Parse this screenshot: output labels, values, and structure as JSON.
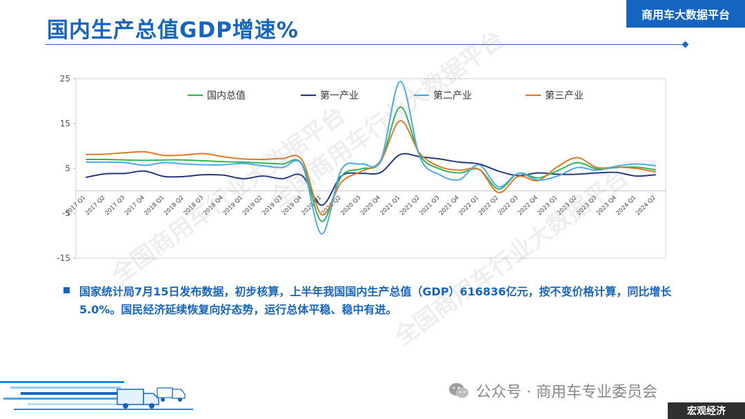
{
  "header": {
    "title": "国内生产总值GDP增速%",
    "brand": "商用车大数据平台"
  },
  "watermarks": [
    "全国商用车行业大数据平台",
    "全国商用车行业大数据平台",
    "全国商用车行业大数据平台"
  ],
  "summary": {
    "text": "国家统计局7月15日发布数据，初步核算，上半年我国国内生产总值（GDP）616836亿元，按不变价格计算，同比增长5.0%。国民经济延续恢复向好态势，运行总体平稳、稳中有进。"
  },
  "footer": {
    "wechat_credit": "公众号 · 商用车专业委员会",
    "tag": "宏观经济"
  },
  "colors": {
    "accent": "#1565c0",
    "series": [
      "#2fb55a",
      "#243a7a",
      "#4aa8ef",
      "#e07a22"
    ]
  },
  "chart_data": {
    "type": "line",
    "title": "",
    "xlabel": "",
    "ylabel": "",
    "ylim": [
      -15,
      25
    ],
    "yticks": [
      -15,
      -5,
      5,
      15,
      25
    ],
    "grid": false,
    "legend_position": "top",
    "smooth": true,
    "categories": [
      "2017 Q1",
      "2017 Q2",
      "2017 Q3",
      "2017 Q4",
      "2018 Q1",
      "2018 Q2",
      "2018 Q3",
      "2018 Q4",
      "2019 Q1",
      "2019 Q2",
      "2019 Q3",
      "2019 Q4",
      "2020 Q1",
      "2020 Q2",
      "2020 Q3",
      "2020 Q4",
      "2021 Q1",
      "2021 Q2",
      "2021 Q3",
      "2021 Q4",
      "2022 Q1",
      "2022 Q2",
      "2022 Q3",
      "2022 Q4",
      "2023 Q1",
      "2023 Q2",
      "2023 Q3",
      "2023 Q4",
      "2024 Q1",
      "2024 Q2"
    ],
    "series": [
      {
        "name": "国内总值",
        "values": [
          7.0,
          7.0,
          6.9,
          6.8,
          6.9,
          6.9,
          6.7,
          6.5,
          6.4,
          6.2,
          6.0,
          6.0,
          -6.8,
          3.2,
          4.9,
          6.5,
          18.7,
          7.9,
          4.9,
          4.0,
          4.8,
          0.4,
          3.9,
          2.9,
          4.5,
          6.3,
          4.9,
          5.2,
          5.3,
          4.7
        ]
      },
      {
        "name": "第一产业",
        "values": [
          3.0,
          3.8,
          3.9,
          4.4,
          3.2,
          3.2,
          3.6,
          3.5,
          2.7,
          3.3,
          2.7,
          3.4,
          -3.2,
          3.3,
          3.9,
          4.1,
          8.1,
          7.6,
          7.1,
          6.4,
          6.0,
          4.4,
          3.4,
          4.0,
          3.7,
          3.7,
          4.0,
          4.1,
          3.3,
          3.6
        ]
      },
      {
        "name": "第二产业",
        "values": [
          6.4,
          6.4,
          6.3,
          5.7,
          6.3,
          6.0,
          5.8,
          5.8,
          6.1,
          5.6,
          5.2,
          5.8,
          -9.6,
          4.7,
          6.0,
          6.8,
          24.4,
          7.5,
          3.6,
          2.5,
          5.8,
          0.9,
          3.9,
          2.4,
          3.3,
          5.2,
          4.6,
          5.5,
          6.0,
          5.6
        ]
      },
      {
        "name": "第三产业",
        "values": [
          8.1,
          8.2,
          8.5,
          8.7,
          7.9,
          8.0,
          8.3,
          7.6,
          7.1,
          7.0,
          7.2,
          6.9,
          -5.3,
          1.9,
          4.3,
          6.7,
          15.6,
          8.3,
          5.4,
          4.6,
          4.8,
          -0.4,
          3.2,
          2.3,
          5.4,
          7.4,
          5.2,
          5.3,
          5.0,
          4.2
        ]
      }
    ]
  }
}
